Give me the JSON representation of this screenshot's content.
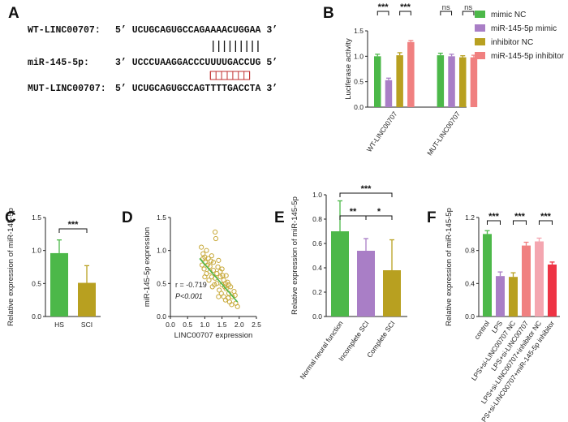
{
  "panel_letters": {
    "A": "A",
    "B": "B",
    "C": "C",
    "D": "D",
    "E": "E",
    "F": "F"
  },
  "sequences": [
    {
      "label": "WT-LINC00707:",
      "seq": "5’ UCUGCAGUGCCAGAAAACUGGAA 3’"
    },
    {
      "label": "miR-145-5p:",
      "seq": "3’ UCCCUAAGGACCCUUUUGACCUG 5’"
    },
    {
      "label": "MUT-LINC00707:",
      "seq": "5’ UCUGCAGUGCCAGTTTTGACCTA 3’"
    }
  ],
  "chart_data": [
    {
      "panel": "B",
      "type": "bar",
      "categories": [
        "WT-LINC00707",
        "MUT-LINC00707"
      ],
      "ylabel": "Luciferase activity",
      "ylim": [
        0,
        1.5
      ],
      "yticks": [
        "0.0",
        "0.5",
        "1.0",
        "1.5"
      ],
      "series": [
        {
          "name": "mimic NC",
          "values": [
            1.0,
            1.02
          ],
          "errors": [
            0.04,
            0.04
          ]
        },
        {
          "name": "miR-145-5p mimic",
          "values": [
            0.53,
            1.0
          ],
          "errors": [
            0.04,
            0.04
          ]
        },
        {
          "name": "inhibitor  NC",
          "values": [
            1.02,
            0.98
          ],
          "errors": [
            0.05,
            0.03
          ]
        },
        {
          "name": "miR-145-5p inhibitor",
          "values": [
            1.28,
            0.98
          ],
          "errors": [
            0.03,
            0.04
          ]
        }
      ],
      "annotations": [
        "***",
        "***",
        "ns",
        "ns"
      ],
      "legend": "right"
    },
    {
      "panel": "C",
      "type": "bar",
      "categories": [
        "HS",
        "SCI"
      ],
      "values": [
        0.96,
        0.51
      ],
      "errors": [
        0.2,
        0.26
      ],
      "ylabel": "Relative expression of miR-145-5p",
      "ylim": [
        0,
        1.5
      ],
      "yticks": [
        "0.0",
        "0.5",
        "1.0",
        "1.5"
      ],
      "annotations": [
        "***"
      ]
    },
    {
      "panel": "D",
      "type": "scatter",
      "xlabel": "LINC00707 expression",
      "ylabel": "miR-145-5p expression",
      "xlim": [
        0,
        2.5
      ],
      "ylim": [
        0,
        1.5
      ],
      "xticks": [
        "0.0",
        "0.5",
        "1.0",
        "1.5",
        "2.0",
        "2.5"
      ],
      "yticks": [
        "0.0",
        "0.5",
        "1.0",
        "1.5"
      ],
      "r_text": "r = -0.719",
      "p_text": "P<0.001",
      "fit_line": {
        "x": [
          0.85,
          1.95
        ],
        "y": [
          0.88,
          0.22
        ]
      },
      "points": [
        [
          0.9,
          1.05
        ],
        [
          0.95,
          0.95
        ],
        [
          1.0,
          0.9
        ],
        [
          1.05,
          1.0
        ],
        [
          1.02,
          0.82
        ],
        [
          0.92,
          0.78
        ],
        [
          1.1,
          0.88
        ],
        [
          1.15,
          0.76
        ],
        [
          1.2,
          0.92
        ],
        [
          1.25,
          0.7
        ],
        [
          1.3,
          1.28
        ],
        [
          1.32,
          1.18
        ],
        [
          1.35,
          0.65
        ],
        [
          1.4,
          0.85
        ],
        [
          1.45,
          0.6
        ],
        [
          1.5,
          0.72
        ],
        [
          1.55,
          0.55
        ],
        [
          1.6,
          0.5
        ],
        [
          1.62,
          0.42
        ],
        [
          1.7,
          0.35
        ],
        [
          1.75,
          0.45
        ],
        [
          1.8,
          0.3
        ],
        [
          1.85,
          0.38
        ],
        [
          1.9,
          0.2
        ],
        [
          1.95,
          0.15
        ],
        [
          1.05,
          0.65
        ],
        [
          1.12,
          0.55
        ],
        [
          1.2,
          0.6
        ],
        [
          1.28,
          0.48
        ],
        [
          1.35,
          0.5
        ],
        [
          1.42,
          0.4
        ],
        [
          1.48,
          0.35
        ],
        [
          1.55,
          0.3
        ],
        [
          1.6,
          0.25
        ],
        [
          1.68,
          0.28
        ],
        [
          0.98,
          0.72
        ],
        [
          1.08,
          0.78
        ],
        [
          1.18,
          0.84
        ],
        [
          1.38,
          0.75
        ],
        [
          1.45,
          0.68
        ],
        [
          1.52,
          0.62
        ],
        [
          1.58,
          0.45
        ],
        [
          1.66,
          0.52
        ],
        [
          1.72,
          0.22
        ],
        [
          1.3,
          0.58
        ],
        [
          1.22,
          0.45
        ],
        [
          1.5,
          0.48
        ],
        [
          1.4,
          0.3
        ],
        [
          1.88,
          0.32
        ],
        [
          1.78,
          0.18
        ],
        [
          1.0,
          0.6
        ],
        [
          1.15,
          0.68
        ],
        [
          0.95,
          0.88
        ],
        [
          1.25,
          0.82
        ],
        [
          1.62,
          0.62
        ],
        [
          1.7,
          0.48
        ]
      ]
    },
    {
      "panel": "E",
      "type": "bar",
      "categories": [
        "Normal neural function",
        "Incomplete SCI",
        "Complete SCI"
      ],
      "values": [
        0.7,
        0.54,
        0.38
      ],
      "errors": [
        0.25,
        0.1,
        0.25
      ],
      "ylabel": "Relative expression of miR-145-5p",
      "ylim": [
        0,
        1.0
      ],
      "yticks": [
        "0.0",
        "0.2",
        "0.4",
        "0.6",
        "0.8",
        "1.0"
      ],
      "annotations": [
        "***",
        "**",
        "*"
      ]
    },
    {
      "panel": "F",
      "type": "bar",
      "categories": [
        "control",
        "LPS",
        "LPS+si-LINC00707 NC",
        "LPS+si-LINC00707",
        "LPS+si-LINC00707+inhibitor NC",
        "LPS+si-LINC00707+miR-145-5p inhibitor"
      ],
      "values": [
        1.0,
        0.49,
        0.48,
        0.86,
        0.91,
        0.63
      ],
      "errors": [
        0.04,
        0.05,
        0.05,
        0.04,
        0.04,
        0.03
      ],
      "ylabel": "Relative expression of miR-145-5p",
      "ylim": [
        0,
        1.2
      ],
      "yticks": [
        "0.0",
        "0.4",
        "0.8",
        "1.2"
      ],
      "annotations": [
        "***",
        "***",
        "***"
      ]
    }
  ],
  "colors": {
    "green": "#4cb849",
    "purple": "#a97ec6",
    "olive": "#b8a020",
    "salmon": "#f08080",
    "pink": "#f4a6b0",
    "red": "#ee3344",
    "scatter": "#c8a93a",
    "fit": "#4cb849"
  }
}
